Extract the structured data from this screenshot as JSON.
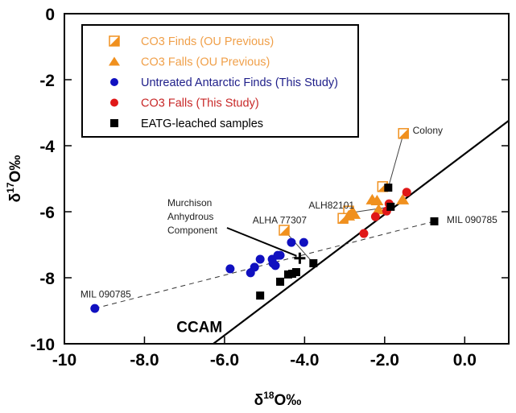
{
  "chart_data": {
    "type": "scatter",
    "xlabel": {
      "main": "δ",
      "sup": "18",
      "rest": "O‰"
    },
    "ylabel": {
      "main": "δ",
      "sup": "17",
      "rest": "O‰"
    },
    "xlim": [
      -10,
      1.1
    ],
    "ylim": [
      -10,
      0
    ],
    "xticks": [
      {
        "v": -10,
        "label": "-10"
      },
      {
        "v": -8,
        "label": "-8.0"
      },
      {
        "v": -6,
        "label": "-6.0"
      },
      {
        "v": -4,
        "label": "-4.0"
      },
      {
        "v": -2,
        "label": "-2.0"
      },
      {
        "v": 0,
        "label": "0.0"
      }
    ],
    "yticks": [
      {
        "v": 0,
        "label": "0"
      },
      {
        "v": -2,
        "label": "-2"
      },
      {
        "v": -4,
        "label": "-4"
      },
      {
        "v": -6,
        "label": "-6"
      },
      {
        "v": -8,
        "label": "-8"
      },
      {
        "v": -10,
        "label": "-10"
      }
    ],
    "grid": false,
    "legend_position": "top-left",
    "series": [
      {
        "name": "CO3 Finds (OU Previous)",
        "marker": "half-square",
        "color": "#f0901e",
        "points": [
          [
            -1.53,
            -3.63
          ],
          [
            -2.05,
            -5.24
          ],
          [
            -2.9,
            -5.98
          ],
          [
            -3.04,
            -6.2
          ],
          [
            -4.51,
            -6.56
          ]
        ]
      },
      {
        "name": "CO3 Falls (OU Previous)",
        "marker": "triangle",
        "color": "#f0901e",
        "points": [
          [
            -2.76,
            -6.07
          ],
          [
            -2.9,
            -6.12
          ],
          [
            -2.31,
            -5.63
          ],
          [
            -2.19,
            -5.66
          ],
          [
            -1.55,
            -5.63
          ],
          [
            -2.15,
            -5.93
          ]
        ]
      },
      {
        "name": "Untreated Antarctic Finds (This Study)",
        "marker": "circle",
        "color": "#1010c0",
        "points": [
          [
            -9.24,
            -8.93
          ],
          [
            -5.86,
            -7.73
          ],
          [
            -5.35,
            -7.85
          ],
          [
            -5.25,
            -7.68
          ],
          [
            -5.11,
            -7.44
          ],
          [
            -4.81,
            -7.44
          ],
          [
            -4.79,
            -7.56
          ],
          [
            -4.73,
            -7.63
          ],
          [
            -4.67,
            -7.32
          ],
          [
            -4.61,
            -7.32
          ],
          [
            -4.33,
            -6.93
          ],
          [
            -4.02,
            -6.93
          ]
        ]
      },
      {
        "name": "CO3 Falls (This Study)",
        "marker": "circle",
        "color": "#e01818",
        "points": [
          [
            -1.45,
            -5.41
          ],
          [
            -1.89,
            -5.76
          ],
          [
            -1.95,
            -5.98
          ],
          [
            -2.23,
            -6.15
          ],
          [
            -2.52,
            -6.66
          ]
        ]
      },
      {
        "name": "EATG-leached samples",
        "marker": "square",
        "color": "#000000",
        "points": [
          [
            -5.11,
            -8.54
          ],
          [
            -4.61,
            -8.12
          ],
          [
            -4.41,
            -7.9
          ],
          [
            -4.31,
            -7.88
          ],
          [
            -4.21,
            -7.83
          ],
          [
            -3.78,
            -7.56
          ],
          [
            -1.91,
            -5.27
          ],
          [
            -1.85,
            -5.85
          ],
          [
            -0.76,
            -6.29
          ]
        ]
      }
    ],
    "lines": [
      {
        "name": "CCAM",
        "style": "solid",
        "from": [
          -6.28,
          -10
        ],
        "to": [
          1.1,
          -3.24
        ]
      },
      {
        "name": "mixing-line",
        "style": "dashed",
        "from": [
          -9.24,
          -8.93
        ],
        "to": [
          -0.76,
          -6.29
        ]
      }
    ],
    "murchison_point": [
      -4.12,
      -7.41
    ],
    "annotations": [
      {
        "text": "Colony",
        "at": [
          -1.3,
          -3.63
        ],
        "leader": [
          [
            -1.53,
            -3.63
          ],
          [
            -1.91,
            -5.27
          ]
        ]
      },
      {
        "text": "ALH82101",
        "at": [
          -3.9,
          -5.9
        ],
        "leader": [
          [
            -2.95,
            -6.05
          ],
          [
            -1.85,
            -5.85
          ]
        ]
      },
      {
        "text": "ALHA 77307",
        "at": [
          -5.3,
          -6.35
        ],
        "leader": [
          [
            -4.51,
            -6.56
          ],
          [
            -3.78,
            -7.56
          ]
        ]
      },
      {
        "text": "MIL 090785",
        "at": [
          -9.6,
          -8.6
        ],
        "leader": null
      },
      {
        "text": "MIL 090785",
        "at": [
          -0.45,
          -6.34
        ],
        "leader": null
      },
      {
        "text": "CCAM",
        "at": [
          -7.2,
          -9.65
        ],
        "leader": null,
        "bold": true
      }
    ],
    "murchison_label": [
      "Murchison",
      "Anhydrous",
      "Component"
    ]
  }
}
